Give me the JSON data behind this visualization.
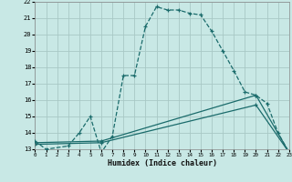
{
  "xlabel": "Humidex (Indice chaleur)",
  "bg_color": "#c8e8e5",
  "grid_color": "#a8c8c5",
  "line_color": "#1a6b6b",
  "xlim": [
    0,
    23
  ],
  "ylim": [
    13,
    22
  ],
  "yticks": [
    13,
    14,
    15,
    16,
    17,
    18,
    19,
    20,
    21,
    22
  ],
  "xticks": [
    0,
    1,
    2,
    3,
    4,
    5,
    6,
    7,
    8,
    9,
    10,
    11,
    12,
    13,
    14,
    15,
    16,
    17,
    18,
    19,
    20,
    21,
    22,
    23
  ],
  "series1_x": [
    0,
    1,
    3,
    4,
    5,
    6,
    7,
    8,
    9,
    10,
    11,
    12,
    13,
    14,
    15,
    16,
    17,
    18,
    19,
    20,
    21,
    22,
    23
  ],
  "series1_y": [
    13.5,
    13.0,
    13.2,
    14.0,
    15.0,
    12.8,
    13.8,
    17.5,
    17.5,
    20.5,
    21.7,
    21.5,
    21.5,
    21.3,
    21.2,
    20.2,
    19.0,
    17.8,
    16.5,
    16.3,
    15.8,
    14.0,
    12.8
  ],
  "series2_x": [
    0,
    6,
    20,
    23
  ],
  "series2_y": [
    13.4,
    13.5,
    16.3,
    12.8
  ],
  "series3_x": [
    0,
    6,
    20,
    23
  ],
  "series3_y": [
    13.3,
    13.4,
    15.7,
    12.8
  ]
}
